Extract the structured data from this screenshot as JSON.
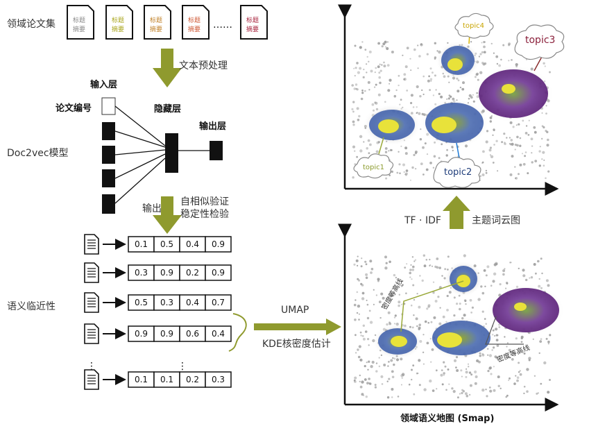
{
  "corpus": {
    "title": "领域论文集",
    "ellipsis": "……",
    "docs": [
      {
        "line1": "标题",
        "line2": "摘要",
        "color": "#8a8a8a"
      },
      {
        "line1": "标题",
        "line2": "摘要",
        "color": "#a9a51c"
      },
      {
        "line1": "标题",
        "line2": "摘要",
        "color": "#c2832b"
      },
      {
        "line1": "标题",
        "line2": "摘要",
        "color": "#cf5a37"
      },
      {
        "line1": "标题",
        "line2": "摘要",
        "color": "#a8243e"
      }
    ]
  },
  "step_preprocess": "文本预处理",
  "model": {
    "name": "Doc2vec模型",
    "input_layer": "输入层",
    "paper_id": "论文编号",
    "hidden_layer": "隐藏层",
    "output_layer": "输出层"
  },
  "step_output": {
    "label": "输出",
    "check1": "自相似验证",
    "check2": "稳定性检验"
  },
  "semantic": {
    "label": "语义临近性",
    "vectors": [
      [
        "0.1",
        "0.5",
        "0.4",
        "0.9"
      ],
      [
        "0.3",
        "0.9",
        "0.2",
        "0.9"
      ],
      [
        "0.5",
        "0.3",
        "0.4",
        "0.7"
      ],
      [
        "0.9",
        "0.9",
        "0.6",
        "0.4"
      ],
      [
        "0.1",
        "0.1",
        "0.2",
        "0.3"
      ]
    ],
    "ellipsis": "⋮"
  },
  "step_umap": {
    "top": "UMAP",
    "bottom": "KDE核密度估计"
  },
  "step_tfidf": {
    "left": "TF · IDF",
    "right": "主题词云图"
  },
  "smap": {
    "title": "领域语义地图 (Smap)",
    "contour1": "密度等高线",
    "contour2": "密度等高线"
  },
  "topics": [
    {
      "name": "topic1",
      "color": "#8a9a2a"
    },
    {
      "name": "topic2",
      "color": "#1f3d7a"
    },
    {
      "name": "topic3",
      "color": "#8a1f3a"
    },
    {
      "name": "topic4",
      "color": "#c8a400"
    }
  ],
  "colors": {
    "arrow": "#8f9a2e",
    "blob_blue": "#3a5ba8",
    "blob_purple": "#6b2a8c",
    "core": "#e8e23a"
  }
}
